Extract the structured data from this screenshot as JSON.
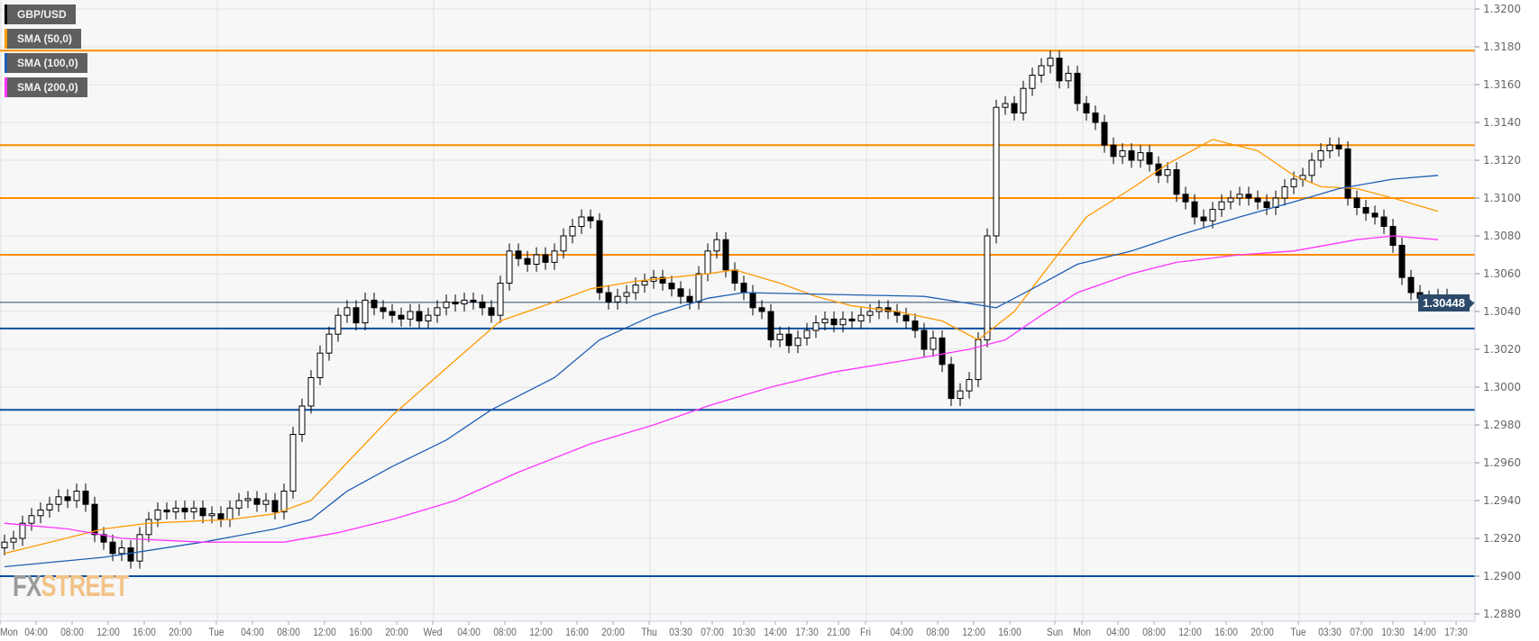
{
  "chart_data": {
    "type": "candlestick",
    "symbol": "GBP/USD",
    "interval_note": "",
    "ylim": [
      1.288,
      1.32
    ],
    "yticks": [
      "1.3200",
      "1.3180",
      "1.3160",
      "1.3140",
      "1.3120",
      "1.3100",
      "1.3080",
      "1.3060",
      "1.3040",
      "1.3020",
      "1.3000",
      "1.2980",
      "1.2960",
      "1.2940",
      "1.2920",
      "1.2900",
      "1.2880"
    ],
    "grid": true,
    "first_open": 1.2915,
    "closes": [
      1.2918,
      1.292,
      1.2928,
      1.2932,
      1.2935,
      1.2938,
      1.2942,
      1.294,
      1.2945,
      1.2938,
      1.2922,
      1.2918,
      1.2912,
      1.2915,
      1.2908,
      1.2922,
      1.293,
      1.2935,
      1.2934,
      1.2936,
      1.2934,
      1.2936,
      1.2932,
      1.2933,
      1.293,
      1.2936,
      1.294,
      1.2941,
      1.2938,
      1.294,
      1.2934,
      1.2945,
      1.2975,
      1.299,
      1.3005,
      1.3018,
      1.3028,
      1.3038,
      1.3042,
      1.3034,
      1.3046,
      1.3042,
      1.304,
      1.3038,
      1.3036,
      1.304,
      1.3035,
      1.3038,
      1.3042,
      1.3045,
      1.3044,
      1.3046,
      1.3045,
      1.3042,
      1.3038,
      1.3055,
      1.3072,
      1.3068,
      1.3065,
      1.307,
      1.3066,
      1.3072,
      1.308,
      1.3085,
      1.309,
      1.3088,
      1.305,
      1.3045,
      1.3048,
      1.305,
      1.3054,
      1.3056,
      1.3058,
      1.3055,
      1.3052,
      1.3048,
      1.3045,
      1.306,
      1.3072,
      1.3078,
      1.3062,
      1.3055,
      1.305,
      1.3042,
      1.304,
      1.3025,
      1.3028,
      1.3022,
      1.3026,
      1.303,
      1.3034,
      1.3036,
      1.3033,
      1.3036,
      1.3035,
      1.3038,
      1.304,
      1.3042,
      1.304,
      1.3038,
      1.3035,
      1.303,
      1.302,
      1.3026,
      1.3012,
      1.2994,
      1.2998,
      1.3004,
      1.3025,
      1.308,
      1.3148,
      1.315,
      1.3145,
      1.3158,
      1.3165,
      1.317,
      1.3174,
      1.3162,
      1.3166,
      1.315,
      1.3145,
      1.314,
      1.3128,
      1.3122,
      1.3125,
      1.312,
      1.3124,
      1.3118,
      1.3112,
      1.3115,
      1.3102,
      1.3098,
      1.309,
      1.3088,
      1.3094,
      1.3098,
      1.31,
      1.3102,
      1.31,
      1.3098,
      1.3095,
      1.31,
      1.3106,
      1.311,
      1.3112,
      1.312,
      1.3125,
      1.3128,
      1.3126,
      1.31,
      1.3095,
      1.3092,
      1.309,
      1.3085,
      1.3075,
      1.3058,
      1.305,
      1.3047,
      1.3046,
      1.3048,
      1.30448
    ],
    "xticks": [
      {
        "label": "Mon",
        "t": 0
      },
      {
        "label": "04:00",
        "t": 4
      },
      {
        "label": "08:00",
        "t": 8
      },
      {
        "label": "12:00",
        "t": 12
      },
      {
        "label": "16:00",
        "t": 16
      },
      {
        "label": "20:00",
        "t": 20
      },
      {
        "label": "Tue",
        "t": 24
      },
      {
        "label": "04:00",
        "t": 28
      },
      {
        "label": "08:00",
        "t": 32
      },
      {
        "label": "12:00",
        "t": 36
      },
      {
        "label": "16:00",
        "t": 40
      },
      {
        "label": "20:00",
        "t": 44
      },
      {
        "label": "Wed",
        "t": 48
      },
      {
        "label": "04:00",
        "t": 52
      },
      {
        "label": "08:00",
        "t": 56
      },
      {
        "label": "12:00",
        "t": 60
      },
      {
        "label": "16:00",
        "t": 64
      },
      {
        "label": "20:00",
        "t": 68
      },
      {
        "label": "Thu",
        "t": 72
      },
      {
        "label": "03:30",
        "t": 75.5
      },
      {
        "label": "07:00",
        "t": 79
      },
      {
        "label": "10:30",
        "t": 82.5
      },
      {
        "label": "14:00",
        "t": 86
      },
      {
        "label": "17:30",
        "t": 89.5
      },
      {
        "label": "21:00",
        "t": 93
      },
      {
        "label": "Fri",
        "t": 96
      },
      {
        "label": "04:00",
        "t": 100
      },
      {
        "label": "08:00",
        "t": 104
      },
      {
        "label": "12:00",
        "t": 108
      },
      {
        "label": "16:00",
        "t": 112
      },
      {
        "label": "Sun",
        "t": 117
      },
      {
        "label": "Mon",
        "t": 120
      },
      {
        "label": "04:00",
        "t": 124
      },
      {
        "label": "08:00",
        "t": 128
      },
      {
        "label": "12:00",
        "t": 132
      },
      {
        "label": "16:00",
        "t": 136
      },
      {
        "label": "20:00",
        "t": 140
      },
      {
        "label": "Tue",
        "t": 144
      },
      {
        "label": "03:30",
        "t": 147.5
      },
      {
        "label": "07:00",
        "t": 151
      },
      {
        "label": "10:30",
        "t": 154.5
      },
      {
        "label": "14:00",
        "t": 158
      },
      {
        "label": "17:30",
        "t": 161.5
      }
    ],
    "day_gridlines": [
      0,
      24,
      48,
      72,
      96,
      117,
      120,
      144
    ],
    "series": [
      {
        "name": "SMA (50,0)",
        "color": "#ff9900",
        "points": [
          [
            0,
            1.2912
          ],
          [
            11,
            1.2925
          ],
          [
            16,
            1.2928
          ],
          [
            25,
            1.293
          ],
          [
            30,
            1.2933
          ],
          [
            34,
            1.294
          ],
          [
            38,
            1.296
          ],
          [
            43,
            1.2985
          ],
          [
            49,
            1.301
          ],
          [
            55,
            1.3035
          ],
          [
            61,
            1.3045
          ],
          [
            65,
            1.3052
          ],
          [
            70,
            1.3056
          ],
          [
            78,
            1.306
          ],
          [
            81,
            1.3062
          ],
          [
            86,
            1.3055
          ],
          [
            90,
            1.3048
          ],
          [
            94,
            1.3043
          ],
          [
            99,
            1.304
          ],
          [
            104,
            1.3035
          ],
          [
            108,
            1.3025
          ],
          [
            112,
            1.304
          ],
          [
            116,
            1.3065
          ],
          [
            120,
            1.309
          ],
          [
            125,
            1.3105
          ],
          [
            129,
            1.3118
          ],
          [
            134,
            1.3131
          ],
          [
            139,
            1.3125
          ],
          [
            143,
            1.3112
          ],
          [
            146,
            1.3106
          ],
          [
            150,
            1.3105
          ],
          [
            154,
            1.31
          ],
          [
            159,
            1.3093
          ]
        ]
      },
      {
        "name": "SMA (100,0)",
        "color": "#1f5fb4",
        "points": [
          [
            0,
            1.2905
          ],
          [
            11,
            1.291
          ],
          [
            22,
            1.2918
          ],
          [
            30,
            1.2925
          ],
          [
            34,
            1.293
          ],
          [
            38,
            1.2945
          ],
          [
            43,
            1.2958
          ],
          [
            49,
            1.2972
          ],
          [
            54,
            1.2988
          ],
          [
            61,
            1.3005
          ],
          [
            66,
            1.3025
          ],
          [
            72,
            1.3038
          ],
          [
            78,
            1.3047
          ],
          [
            82,
            1.305
          ],
          [
            92,
            1.3049
          ],
          [
            102,
            1.3048
          ],
          [
            106,
            1.3045
          ],
          [
            110,
            1.3042
          ],
          [
            114,
            1.3052
          ],
          [
            119,
            1.3065
          ],
          [
            125,
            1.3072
          ],
          [
            130,
            1.308
          ],
          [
            137,
            1.309
          ],
          [
            143,
            1.3098
          ],
          [
            148,
            1.3105
          ],
          [
            154,
            1.311
          ],
          [
            159,
            1.3112
          ]
        ]
      },
      {
        "name": "SMA (200,0)",
        "color": "#ff33ff",
        "points": [
          [
            0,
            1.2928
          ],
          [
            7,
            1.2925
          ],
          [
            13,
            1.292
          ],
          [
            22,
            1.2918
          ],
          [
            31,
            1.2918
          ],
          [
            37,
            1.2923
          ],
          [
            43,
            1.293
          ],
          [
            50,
            1.294
          ],
          [
            57,
            1.2955
          ],
          [
            65,
            1.297
          ],
          [
            72,
            1.298
          ],
          [
            78,
            1.299
          ],
          [
            85,
            1.3
          ],
          [
            92,
            1.3008
          ],
          [
            101,
            1.3015
          ],
          [
            107,
            1.302
          ],
          [
            111,
            1.3025
          ],
          [
            115,
            1.3038
          ],
          [
            119,
            1.305
          ],
          [
            125,
            1.306
          ],
          [
            130,
            1.3066
          ],
          [
            137,
            1.307
          ],
          [
            143,
            1.3072
          ],
          [
            150,
            1.3078
          ],
          [
            154,
            1.308
          ],
          [
            159,
            1.3078
          ]
        ]
      }
    ],
    "resistance_levels": {
      "color": "#ff8c00",
      "values": [
        1.3178,
        1.3128,
        1.31,
        1.307
      ]
    },
    "support_levels": {
      "color": "#0b4ea2",
      "values": [
        1.3031,
        1.2988,
        1.29
      ]
    },
    "last_price": {
      "value": 1.30448,
      "label": "1.30448",
      "color": "#2d4a6b"
    }
  },
  "legend": [
    {
      "label": "GBP/USD",
      "color": "#000000"
    },
    {
      "label": "SMA (50,0)",
      "color": "#ff9900"
    },
    {
      "label": "SMA (100,0)",
      "color": "#1f5fb4"
    },
    {
      "label": "SMA (200,0)",
      "color": "#ff33ff"
    }
  ],
  "logo": {
    "part1": "FX",
    "part2": "STREET"
  }
}
